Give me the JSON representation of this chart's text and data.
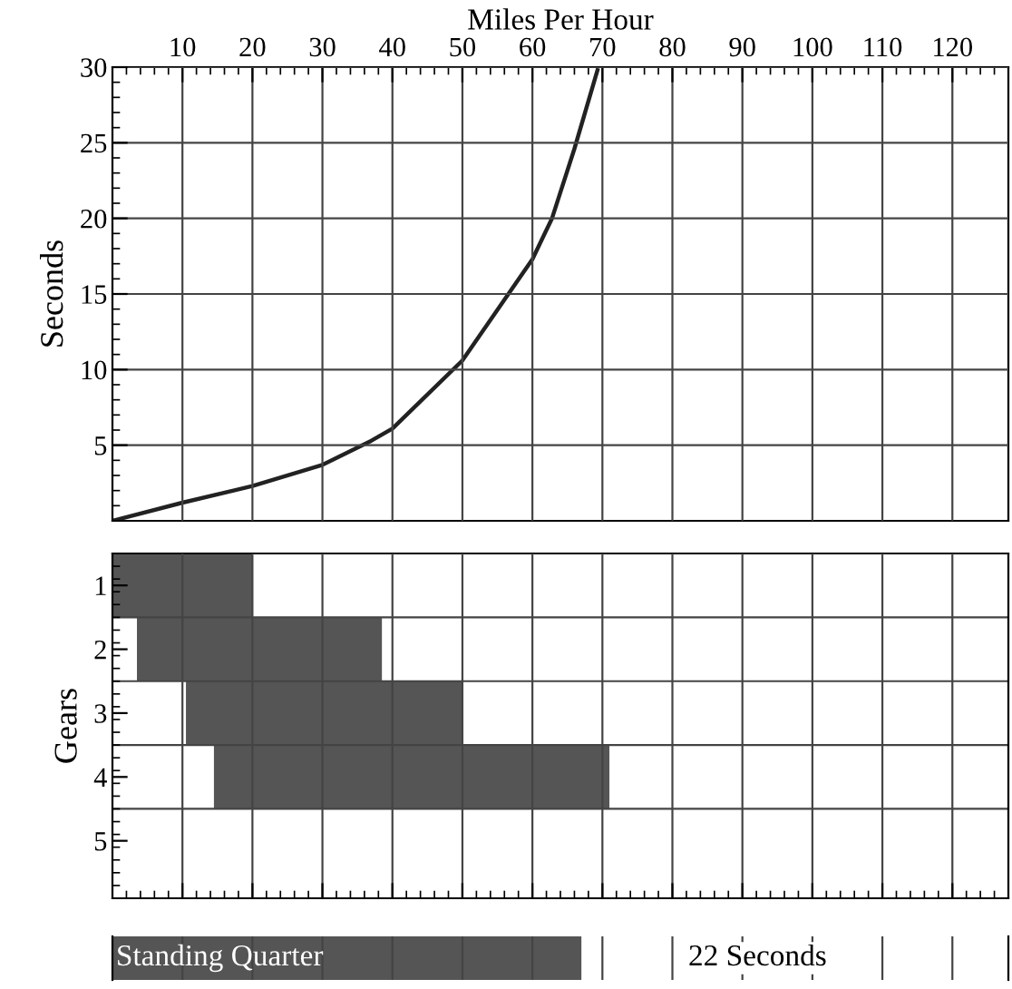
{
  "chart_data": [
    {
      "type": "line",
      "xlabel": "Miles Per Hour",
      "ylabel": "Seconds",
      "xlim": [
        0,
        128
      ],
      "ylim": [
        0,
        30
      ],
      "xticks": [
        10,
        20,
        30,
        40,
        50,
        60,
        70,
        80,
        90,
        100,
        110,
        120
      ],
      "yticks": [
        5,
        10,
        15,
        20,
        25,
        30
      ],
      "grid": true,
      "x": [
        0,
        10,
        20,
        30,
        37,
        40,
        50,
        60,
        62.8,
        66,
        69.3
      ],
      "series": [
        {
          "color": "#222222",
          "values": [
            0,
            1.2,
            2.3,
            3.7,
            5.3,
            6.1,
            10.6,
            17.3,
            20,
            24.6,
            29.8
          ]
        }
      ]
    },
    {
      "type": "bar",
      "orientation": "horizontal",
      "ylabel": "Gears",
      "categories": [
        "1",
        "2",
        "3",
        "4",
        "5"
      ],
      "xlim": [
        0,
        128
      ],
      "xticks": [
        10,
        20,
        30,
        40,
        50,
        60,
        70,
        80,
        90,
        100,
        110,
        120
      ],
      "tick_labels": "y",
      "grid": true,
      "series": [
        {
          "color": "#555555",
          "base": [
            0,
            3.5,
            10.5,
            14.5,
            null
          ],
          "values": [
            20,
            35,
            39.5,
            56.5,
            null
          ]
        }
      ]
    },
    {
      "type": "bar",
      "orientation": "horizontal",
      "categories": [
        "Standing Quarter"
      ],
      "xlim": [
        0,
        128
      ],
      "xticks": [
        10,
        20,
        30,
        40,
        50,
        60,
        70,
        80,
        90,
        100,
        110,
        120
      ],
      "tick_labels": false,
      "grid": "x",
      "annotations": [
        "22 Seconds"
      ],
      "series": [
        {
          "color": "#555555",
          "values": [
            67
          ]
        }
      ]
    }
  ]
}
